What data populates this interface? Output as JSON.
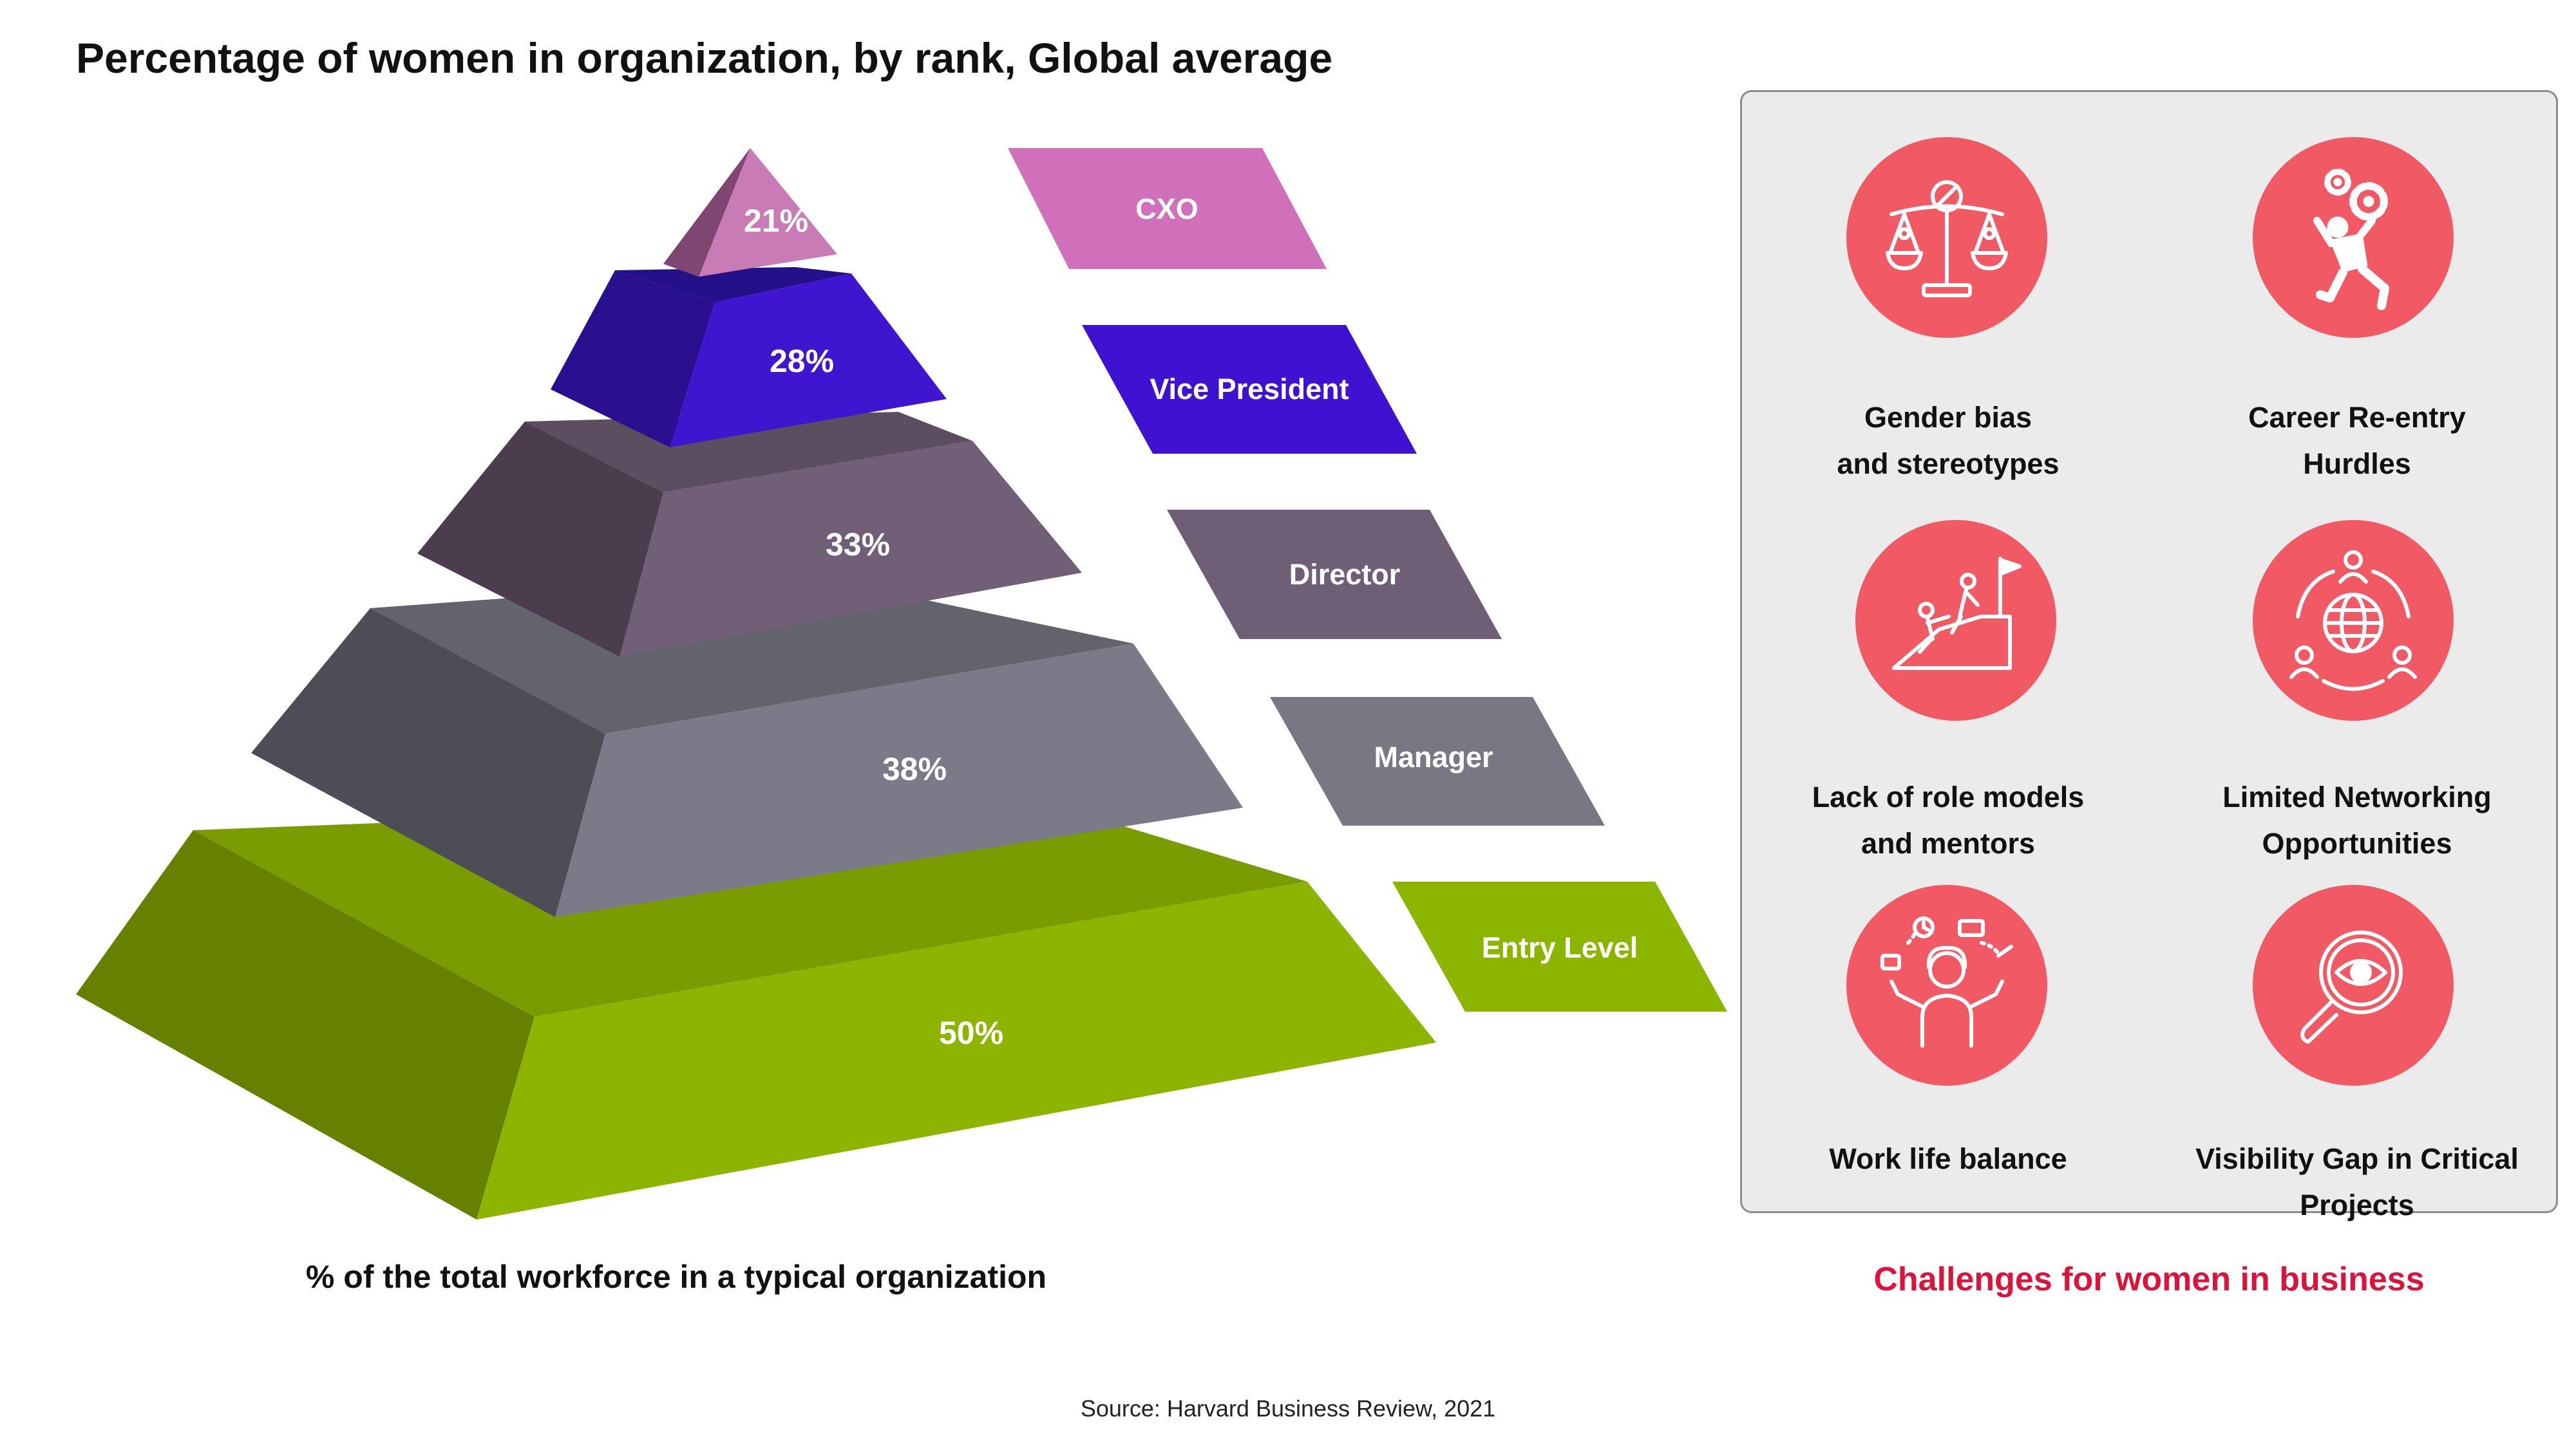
{
  "title": "Percentage of women in organization, by rank, Global average",
  "pyramid": {
    "tiers": [
      {
        "rank": "CXO",
        "percent": "21%",
        "colors": {
          "front": "#9a5a8a",
          "side": "#7e4670",
          "top": "#c97bb6",
          "tag": "#d070bb"
        }
      },
      {
        "rank": "Vice President",
        "percent": "28%",
        "colors": {
          "front": "#3f15cf",
          "side": "#2a0f8f",
          "top": "#24118a",
          "tag": "#3f12d1"
        }
      },
      {
        "rank": "Director",
        "percent": "33%",
        "colors": {
          "front": "#715f78",
          "side": "#4b3c4e",
          "top": "#5c4d60",
          "tag": "#6e5e76"
        }
      },
      {
        "rank": "Manager",
        "percent": "38%",
        "colors": {
          "front": "#7a7a88",
          "side": "#4d4d58",
          "top": "#63636c",
          "tag": "#777884"
        }
      },
      {
        "rank": "Entry Level",
        "percent": "50%",
        "colors": {
          "front": "#8db500",
          "side": "#668000",
          "top": "#7a9c00",
          "tag": "#8cb500"
        }
      }
    ],
    "caption": "% of the total workforce in a typical organization"
  },
  "challenges": {
    "items": [
      {
        "line1": "Gender bias",
        "line2": "and stereotypes",
        "icon": "scales-bias-icon"
      },
      {
        "line1": "Career Re-entry",
        "line2": "Hurdles",
        "icon": "gears-person-icon"
      },
      {
        "line1": "Lack of role models",
        "line2": "and mentors",
        "icon": "mentor-climb-icon"
      },
      {
        "line1": "Limited Networking",
        "line2": "Opportunities",
        "icon": "network-globe-icon"
      },
      {
        "line1": "Work life balance",
        "line2": "",
        "icon": "juggling-woman-icon"
      },
      {
        "line1": "Visibility Gap in Critical",
        "line2": "Projects",
        "icon": "magnifier-eye-icon"
      }
    ],
    "caption": "Challenges for women in business",
    "accent": "#f15a64",
    "caption_color": "#dc143c"
  },
  "source": "Source: Harvard Business Review, 2021"
}
